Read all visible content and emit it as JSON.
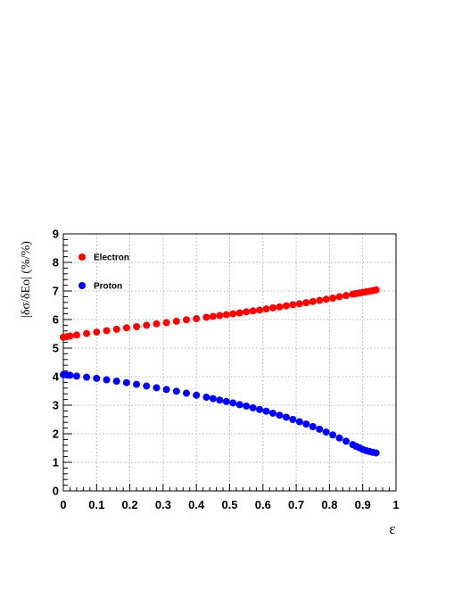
{
  "chart_data": {
    "type": "scatter",
    "title": "",
    "xlabel": "ε",
    "ylabel": "|δσ/δEo| (%/%)",
    "xlim": [
      0,
      1
    ],
    "ylim": [
      0,
      9
    ],
    "x_ticks": [
      "0",
      "0.1",
      "0.2",
      "0.3",
      "0.4",
      "0.5",
      "0.6",
      "0.7",
      "0.8",
      "0.9",
      "1"
    ],
    "y_ticks": [
      "0",
      "1",
      "2",
      "3",
      "4",
      "5",
      "6",
      "7",
      "8",
      "9"
    ],
    "grid": true,
    "legend_position": "top-left",
    "series": [
      {
        "name": "Electron",
        "color": "#ff0000",
        "x": [
          0.0,
          0.01,
          0.02,
          0.04,
          0.07,
          0.1,
          0.13,
          0.16,
          0.19,
          0.22,
          0.25,
          0.28,
          0.31,
          0.34,
          0.37,
          0.4,
          0.43,
          0.45,
          0.47,
          0.49,
          0.51,
          0.53,
          0.55,
          0.57,
          0.59,
          0.61,
          0.63,
          0.65,
          0.67,
          0.69,
          0.71,
          0.73,
          0.75,
          0.77,
          0.79,
          0.81,
          0.83,
          0.85,
          0.87,
          0.88,
          0.89,
          0.9,
          0.91,
          0.92,
          0.93,
          0.94
        ],
        "y": [
          5.38,
          5.4,
          5.42,
          5.46,
          5.51,
          5.56,
          5.61,
          5.66,
          5.71,
          5.75,
          5.8,
          5.85,
          5.89,
          5.94,
          5.99,
          6.03,
          6.08,
          6.11,
          6.14,
          6.17,
          6.2,
          6.23,
          6.27,
          6.3,
          6.33,
          6.37,
          6.41,
          6.44,
          6.48,
          6.52,
          6.55,
          6.59,
          6.63,
          6.67,
          6.71,
          6.75,
          6.8,
          6.84,
          6.89,
          6.91,
          6.93,
          6.95,
          6.97,
          6.99,
          7.01,
          7.04
        ]
      },
      {
        "name": "Proton",
        "color": "#0000ff",
        "x": [
          0.0,
          0.01,
          0.02,
          0.04,
          0.07,
          0.1,
          0.13,
          0.16,
          0.19,
          0.22,
          0.25,
          0.28,
          0.31,
          0.34,
          0.37,
          0.4,
          0.43,
          0.45,
          0.47,
          0.49,
          0.51,
          0.53,
          0.55,
          0.57,
          0.59,
          0.61,
          0.63,
          0.65,
          0.67,
          0.69,
          0.71,
          0.73,
          0.75,
          0.77,
          0.79,
          0.81,
          0.83,
          0.85,
          0.87,
          0.88,
          0.89,
          0.9,
          0.91,
          0.92,
          0.93,
          0.94
        ],
        "y": [
          4.07,
          4.06,
          4.05,
          4.02,
          3.98,
          3.94,
          3.89,
          3.84,
          3.79,
          3.73,
          3.67,
          3.61,
          3.55,
          3.49,
          3.42,
          3.35,
          3.28,
          3.23,
          3.18,
          3.13,
          3.08,
          3.02,
          2.97,
          2.91,
          2.85,
          2.79,
          2.72,
          2.65,
          2.58,
          2.5,
          2.42,
          2.34,
          2.25,
          2.16,
          2.06,
          1.96,
          1.85,
          1.74,
          1.62,
          1.56,
          1.51,
          1.45,
          1.41,
          1.38,
          1.35,
          1.33
        ]
      }
    ]
  }
}
